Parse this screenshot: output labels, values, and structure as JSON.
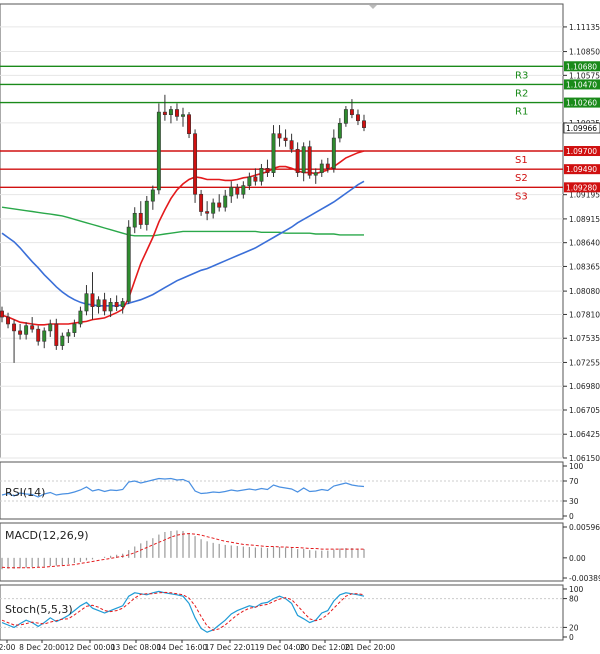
{
  "chart_data": {
    "type": "candlestick",
    "instrument_note": "",
    "colors": {
      "up": "#2e8b2e",
      "down": "#d01010",
      "ema_fast": "#e41a1c",
      "ema_slow": "#3a6fd8",
      "ema_long": "#2aa84a",
      "resistance": "#1a8a1a",
      "support": "#d01010",
      "grid": "#e6e6e6",
      "axis": "#333333",
      "rsi_line": "#4a90e2",
      "macd_hist": "#9a9a9a",
      "macd_signal": "#e41a1c",
      "stoch_main": "#1f9bd6",
      "stoch_signal": "#e41a1c"
    },
    "price_axis": {
      "min": 1.0615,
      "max": 1.114,
      "ticks": [
        "1.11135",
        "1.10850",
        "1.10575",
        "1.10025",
        "1.09195",
        "1.08915",
        "1.08640",
        "1.08365",
        "1.08080",
        "1.07810",
        "1.07535",
        "1.07255",
        "1.06980",
        "1.06705",
        "1.06425",
        "1.06150"
      ]
    },
    "levels": [
      {
        "name": "R3",
        "value": 1.1068,
        "label": "1.10680",
        "kind": "resistance"
      },
      {
        "name": "R2",
        "value": 1.1047,
        "label": "1.10470",
        "kind": "resistance"
      },
      {
        "name": "R1",
        "value": 1.1026,
        "label": "1.10260",
        "kind": "resistance"
      },
      {
        "name": "S1",
        "value": 1.097,
        "label": "1.09700",
        "kind": "support"
      },
      {
        "name": "S2",
        "value": 1.0949,
        "label": "1.09490",
        "kind": "support"
      },
      {
        "name": "S3",
        "value": 1.0928,
        "label": "1.09280",
        "kind": "support"
      }
    ],
    "current_price": {
      "value": 1.09966,
      "label": "1.09966"
    },
    "x_labels": [
      "2:00",
      "8 Dec 20:00",
      "12 Dec 00:00",
      "13 Dec 08:00",
      "14 Dec 16:00",
      "17 Dec 22:01",
      "19 Dec 04:00",
      "20 Dec 12:00",
      "21 Dec 20:00"
    ],
    "ohlc": [
      [
        1.0785,
        1.079,
        1.0772,
        1.0778
      ],
      [
        1.0778,
        1.0783,
        1.0765,
        1.077
      ],
      [
        1.077,
        1.0775,
        1.0725,
        1.0762
      ],
      [
        1.0762,
        1.077,
        1.0752,
        1.0758
      ],
      [
        1.0758,
        1.0772,
        1.0752,
        1.0768
      ],
      [
        1.0768,
        1.0778,
        1.076,
        1.0764
      ],
      [
        1.0764,
        1.0768,
        1.0745,
        1.075
      ],
      [
        1.075,
        1.0766,
        1.0742,
        1.0762
      ],
      [
        1.0762,
        1.0775,
        1.0755,
        1.077
      ],
      [
        1.077,
        1.0776,
        1.074,
        1.0745
      ],
      [
        1.0745,
        1.076,
        1.074,
        1.0756
      ],
      [
        1.0756,
        1.0764,
        1.0748,
        1.076
      ],
      [
        1.076,
        1.0775,
        1.0755,
        1.077
      ],
      [
        1.077,
        1.079,
        1.0766,
        1.0785
      ],
      [
        1.0785,
        1.0815,
        1.078,
        1.0805
      ],
      [
        1.0805,
        1.083,
        1.0775,
        1.079
      ],
      [
        1.079,
        1.0802,
        1.0782,
        1.0798
      ],
      [
        1.0798,
        1.0806,
        1.078,
        1.0785
      ],
      [
        1.0785,
        1.08,
        1.0778,
        1.0795
      ],
      [
        1.0795,
        1.0803,
        1.0785,
        1.079
      ],
      [
        1.079,
        1.08,
        1.0782,
        1.0796
      ],
      [
        1.0796,
        1.089,
        1.0793,
        1.0882
      ],
      [
        1.0882,
        1.0905,
        1.0875,
        1.0898
      ],
      [
        1.0898,
        1.0912,
        1.088,
        1.0885
      ],
      [
        1.0885,
        1.0918,
        1.0878,
        1.0912
      ],
      [
        1.0912,
        1.093,
        1.0902,
        1.0925
      ],
      [
        1.0925,
        1.1025,
        1.092,
        1.1015
      ],
      [
        1.1015,
        1.1035,
        1.1005,
        1.1012
      ],
      [
        1.1012,
        1.1022,
        1.1002,
        1.1018
      ],
      [
        1.1018,
        1.1025,
        1.1005,
        1.101
      ],
      [
        1.101,
        1.102,
        1.0998,
        1.1012
      ],
      [
        1.1012,
        1.1015,
        1.0985,
        1.099
      ],
      [
        1.099,
        1.0995,
        1.091,
        1.092
      ],
      [
        1.092,
        1.0925,
        1.0895,
        1.09
      ],
      [
        1.09,
        1.0912,
        1.089,
        1.0898
      ],
      [
        1.0898,
        1.0915,
        1.0892,
        1.091
      ],
      [
        1.091,
        1.092,
        1.09,
        1.0905
      ],
      [
        1.0905,
        1.0925,
        1.09,
        1.0918
      ],
      [
        1.0918,
        1.0935,
        1.091,
        1.0928
      ],
      [
        1.0928,
        1.0932,
        1.0915,
        1.092
      ],
      [
        1.092,
        1.0935,
        1.0915,
        1.093
      ],
      [
        1.093,
        1.0945,
        1.0925,
        1.094
      ],
      [
        1.094,
        1.095,
        1.093,
        1.0935
      ],
      [
        1.0935,
        1.0955,
        1.093,
        1.095
      ],
      [
        1.095,
        1.096,
        1.094,
        1.0945
      ],
      [
        1.0945,
        1.1,
        1.094,
        1.099
      ],
      [
        1.099,
        1.1,
        1.0975,
        1.0985
      ],
      [
        1.0985,
        1.0995,
        1.0975,
        1.0982
      ],
      [
        1.0982,
        1.099,
        1.0968,
        1.0972
      ],
      [
        1.0972,
        1.098,
        1.094,
        1.0945
      ],
      [
        1.0945,
        1.098,
        1.0935,
        1.0975
      ],
      [
        1.0975,
        1.0982,
        1.0938,
        1.0942
      ],
      [
        1.0942,
        1.095,
        1.0932,
        1.0945
      ],
      [
        1.0945,
        1.096,
        1.094,
        1.0955
      ],
      [
        1.0955,
        1.0962,
        1.0945,
        1.095
      ],
      [
        1.095,
        1.0995,
        1.0945,
        1.0985
      ],
      [
        1.0985,
        1.1008,
        1.098,
        1.1002
      ],
      [
        1.1002,
        1.1022,
        1.0998,
        1.1018
      ],
      [
        1.1018,
        1.103,
        1.1008,
        1.1012
      ],
      [
        1.1012,
        1.1018,
        1.1,
        1.1005
      ],
      [
        1.1005,
        1.1012,
        1.0993,
        1.0997
      ]
    ],
    "ema_fast_values": [
      1.078,
      1.0778,
      1.0775,
      1.0772,
      1.0771,
      1.077,
      1.0769,
      1.0769,
      1.077,
      1.077,
      1.077,
      1.077,
      1.0771,
      1.0772,
      1.0773,
      1.0775,
      1.0776,
      1.0777,
      1.078,
      1.0783,
      1.0787,
      1.08,
      1.082,
      1.084,
      1.0855,
      1.087,
      1.0888,
      1.0902,
      1.0915,
      1.0925,
      1.0932,
      1.0937,
      1.094,
      1.0939,
      1.0937,
      1.0937,
      1.0937,
      1.0936,
      1.0936,
      1.0937,
      1.0939,
      1.094,
      1.0942,
      1.0944,
      1.0946,
      1.095,
      1.0952,
      1.0952,
      1.095,
      1.0947,
      1.0945,
      1.0945,
      1.0944,
      1.0946,
      1.0948,
      1.0952,
      1.0957,
      1.0962,
      1.0965,
      1.0968,
      1.097
    ],
    "ema_slow_values": [
      1.0875,
      1.087,
      1.0865,
      1.0858,
      1.085,
      1.0842,
      1.0835,
      1.0827,
      1.082,
      1.0813,
      1.0807,
      1.0802,
      1.0798,
      1.0795,
      1.0793,
      1.0792,
      1.0791,
      1.0791,
      1.0791,
      1.0791,
      1.0792,
      1.0794,
      1.0796,
      1.0798,
      1.0801,
      1.0804,
      1.0808,
      1.0812,
      1.0816,
      1.082,
      1.0823,
      1.0826,
      1.0829,
      1.0832,
      1.0834,
      1.0837,
      1.084,
      1.0843,
      1.0846,
      1.0849,
      1.0852,
      1.0855,
      1.0858,
      1.0862,
      1.0866,
      1.087,
      1.0874,
      1.0878,
      1.0882,
      1.0887,
      1.0891,
      1.0895,
      1.0899,
      1.0903,
      1.0907,
      1.0911,
      1.0916,
      1.0921,
      1.0926,
      1.0931,
      1.0935
    ],
    "ema_long_values": [
      1.0905,
      1.0904,
      1.0903,
      1.0902,
      1.0901,
      1.09,
      1.0899,
      1.0898,
      1.0897,
      1.0896,
      1.0895,
      1.0893,
      1.0891,
      1.0889,
      1.0887,
      1.0885,
      1.0883,
      1.0881,
      1.0879,
      1.0877,
      1.0875,
      1.0873,
      1.0872,
      1.0872,
      1.0872,
      1.0872,
      1.0873,
      1.0874,
      1.0875,
      1.0876,
      1.0877,
      1.0877,
      1.0877,
      1.0877,
      1.0877,
      1.0877,
      1.0877,
      1.0877,
      1.0877,
      1.0877,
      1.0877,
      1.0877,
      1.0877,
      1.0876,
      1.0876,
      1.0876,
      1.0876,
      1.0875,
      1.0875,
      1.0875,
      1.0875,
      1.0875,
      1.0874,
      1.0874,
      1.0874,
      1.0874,
      1.0873,
      1.0873,
      1.0873,
      1.0873,
      1.0873
    ],
    "rsi": {
      "label": "RSI(14)",
      "range": [
        0,
        100
      ],
      "ticks": [
        "100",
        "70",
        "30",
        "0"
      ],
      "values": [
        42,
        45,
        40,
        46,
        44,
        43,
        38,
        44,
        47,
        42,
        44,
        45,
        48,
        52,
        58,
        50,
        53,
        49,
        52,
        51,
        53,
        68,
        70,
        66,
        69,
        72,
        75,
        74,
        75,
        72,
        73,
        68,
        50,
        45,
        46,
        48,
        47,
        49,
        52,
        50,
        52,
        54,
        52,
        55,
        53,
        62,
        58,
        56,
        54,
        48,
        56,
        49,
        50,
        53,
        51,
        60,
        63,
        66,
        62,
        60,
        59
      ]
    },
    "macd": {
      "label": "MACD(12,26,9)",
      "range": [
        -0.003896,
        0.005967
      ],
      "ticks": [
        "0.005967",
        "0.00",
        "-0.003896"
      ],
      "hist": [
        -0.0022,
        -0.0021,
        -0.0021,
        -0.002,
        -0.0019,
        -0.0018,
        -0.0018,
        -0.0017,
        -0.0016,
        -0.0015,
        -0.0014,
        -0.0012,
        -0.001,
        -0.0008,
        -0.0005,
        -0.0003,
        0.0,
        0.0002,
        0.0004,
        0.0006,
        0.0008,
        0.0015,
        0.0022,
        0.0028,
        0.0033,
        0.0038,
        0.0045,
        0.005,
        0.0052,
        0.0053,
        0.0052,
        0.0048,
        0.0042,
        0.0036,
        0.0032,
        0.0029,
        0.0027,
        0.0025,
        0.0024,
        0.0023,
        0.0022,
        0.0021,
        0.002,
        0.002,
        0.0019,
        0.0021,
        0.0021,
        0.002,
        0.0019,
        0.0017,
        0.0017,
        0.0015,
        0.0014,
        0.0014,
        0.0014,
        0.0016,
        0.0018,
        0.0019,
        0.0019,
        0.0018,
        0.0017
      ],
      "signal": [
        -0.0018,
        -0.0019,
        -0.0019,
        -0.0019,
        -0.0019,
        -0.0019,
        -0.0018,
        -0.0018,
        -0.0017,
        -0.0016,
        -0.0015,
        -0.0014,
        -0.0013,
        -0.0011,
        -0.0009,
        -0.0007,
        -0.0005,
        -0.0003,
        -0.0001,
        0.0001,
        0.0003,
        0.0006,
        0.001,
        0.0015,
        0.002,
        0.0025,
        0.003,
        0.0035,
        0.004,
        0.0044,
        0.0046,
        0.0047,
        0.0046,
        0.0044,
        0.0041,
        0.0038,
        0.0035,
        0.0032,
        0.003,
        0.0028,
        0.0026,
        0.0025,
        0.0024,
        0.0023,
        0.0022,
        0.0022,
        0.0021,
        0.0021,
        0.002,
        0.002,
        0.0019,
        0.0018,
        0.0018,
        0.0017,
        0.0017,
        0.0017,
        0.0017,
        0.0017,
        0.0017,
        0.0017,
        0.0017
      ]
    },
    "stoch": {
      "label": "Stoch(5,5,3)",
      "range": [
        0,
        100
      ],
      "ticks": [
        "100",
        "80",
        "20",
        "0"
      ],
      "main": [
        30,
        25,
        20,
        28,
        35,
        30,
        22,
        30,
        40,
        32,
        38,
        45,
        55,
        65,
        72,
        60,
        55,
        50,
        55,
        60,
        65,
        85,
        92,
        90,
        88,
        92,
        95,
        92,
        90,
        88,
        85,
        70,
        40,
        18,
        10,
        15,
        25,
        35,
        48,
        55,
        60,
        65,
        62,
        70,
        72,
        80,
        85,
        80,
        70,
        45,
        38,
        30,
        35,
        50,
        55,
        75,
        88,
        92,
        90,
        88,
        85
      ],
      "signal": [
        35,
        30,
        25,
        25,
        28,
        31,
        29,
        27,
        31,
        34,
        37,
        38,
        46,
        55,
        64,
        66,
        62,
        55,
        53,
        55,
        60,
        70,
        81,
        89,
        90,
        90,
        92,
        93,
        92,
        90,
        88,
        81,
        65,
        43,
        23,
        14,
        17,
        25,
        36,
        46,
        54,
        60,
        62,
        66,
        68,
        74,
        79,
        82,
        78,
        65,
        51,
        38,
        34,
        38,
        47,
        60,
        73,
        85,
        90,
        90,
        88
      ]
    }
  }
}
